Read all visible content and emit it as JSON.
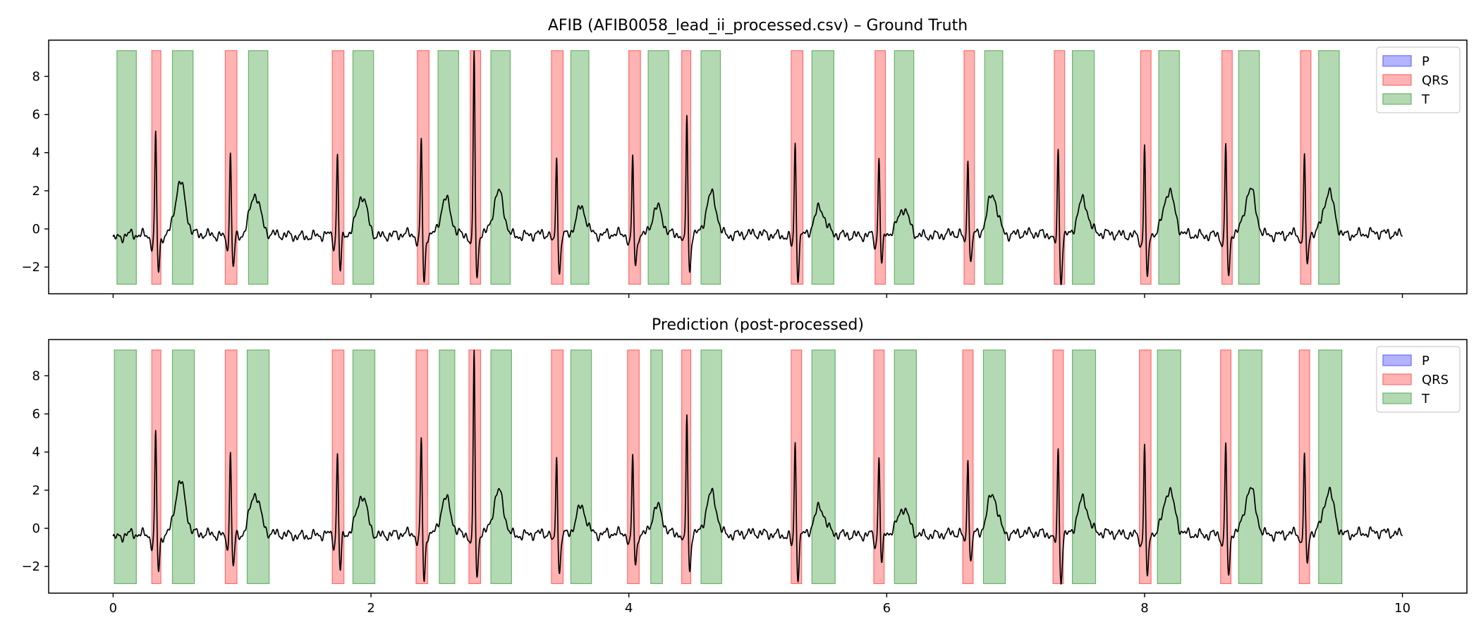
{
  "chart_data": [
    {
      "type": "line",
      "title": "AFIB (AFIB0058_lead_ii_processed.csv) – Ground Truth",
      "xlabel": "",
      "ylabel": "",
      "xlim": [
        -0.5,
        10.5
      ],
      "ylim": [
        -3.4,
        9.9
      ],
      "xticks": [
        0,
        2,
        4,
        6,
        8,
        10
      ],
      "xtick_labels": [
        "",
        "",
        "",
        "",
        "",
        ""
      ],
      "yticks": [
        -2,
        0,
        2,
        4,
        6,
        8
      ],
      "ytick_labels": [
        "−2",
        "0",
        "2",
        "4",
        "6",
        "8"
      ],
      "grid": false,
      "legend_position": "top-right",
      "legend": [
        {
          "label": "P",
          "color": "#b3b3ff"
        },
        {
          "label": "QRS",
          "color": "#ffb3b3"
        },
        {
          "label": "T",
          "color": "#b3d9b3"
        }
      ],
      "band_range": [
        -2.9,
        9.35
      ],
      "segments": {
        "P": [],
        "QRS": [
          [
            0.3,
            0.37
          ],
          [
            0.87,
            0.96
          ],
          [
            1.7,
            1.79
          ],
          [
            2.36,
            2.45
          ],
          [
            2.77,
            2.85
          ],
          [
            3.4,
            3.49
          ],
          [
            4.0,
            4.09
          ],
          [
            4.41,
            4.48
          ],
          [
            5.26,
            5.35
          ],
          [
            5.91,
            5.99
          ],
          [
            6.6,
            6.68
          ],
          [
            7.3,
            7.38
          ],
          [
            7.97,
            8.05
          ],
          [
            8.6,
            8.68
          ],
          [
            9.21,
            9.29
          ]
        ],
        "T": [
          [
            0.03,
            0.18
          ],
          [
            0.46,
            0.62
          ],
          [
            1.05,
            1.2
          ],
          [
            1.86,
            2.02
          ],
          [
            2.52,
            2.68
          ],
          [
            2.93,
            3.08
          ],
          [
            3.55,
            3.69
          ],
          [
            4.15,
            4.31
          ],
          [
            4.56,
            4.71
          ],
          [
            5.42,
            5.59
          ],
          [
            6.06,
            6.21
          ],
          [
            6.76,
            6.9
          ],
          [
            7.44,
            7.61
          ],
          [
            8.11,
            8.27
          ],
          [
            8.73,
            8.89
          ],
          [
            9.35,
            9.51
          ]
        ]
      },
      "beats": [
        {
          "t": 0.33,
          "r": 5.2,
          "s": -2.2,
          "tw": 2.45
        },
        {
          "t": 0.91,
          "r": 4.15,
          "s": -2.0,
          "tw": 1.8
        },
        {
          "t": 1.74,
          "r": 4.0,
          "s": -2.3,
          "tw": 1.75
        },
        {
          "t": 2.39,
          "r": 4.85,
          "s": -2.8,
          "tw": 1.6
        },
        {
          "t": 2.8,
          "r": 9.4,
          "s": -2.8,
          "tw": 1.95
        },
        {
          "t": 3.44,
          "r": 3.9,
          "s": -2.4,
          "tw": 1.15
        },
        {
          "t": 4.03,
          "r": 3.85,
          "s": -2.0,
          "tw": 1.15
        },
        {
          "t": 4.45,
          "r": 5.95,
          "s": -2.3,
          "tw": 1.85
        },
        {
          "t": 5.29,
          "r": 4.7,
          "s": -2.5,
          "tw": 1.0
        },
        {
          "t": 5.94,
          "r": 3.85,
          "s": -2.0,
          "tw": 1.0
        },
        {
          "t": 6.63,
          "r": 3.85,
          "s": -1.9,
          "tw": 1.8
        },
        {
          "t": 7.33,
          "r": 4.25,
          "s": -2.8,
          "tw": 1.45
        },
        {
          "t": 8.0,
          "r": 4.55,
          "s": -2.8,
          "tw": 1.9
        },
        {
          "t": 8.63,
          "r": 4.5,
          "s": -2.8,
          "tw": 2.0
        },
        {
          "t": 9.24,
          "r": 3.75,
          "s": -2.1,
          "tw": 1.9
        }
      ]
    },
    {
      "type": "line",
      "title": "Prediction (post-processed)",
      "xlabel": "",
      "ylabel": "",
      "xlim": [
        -0.5,
        10.5
      ],
      "ylim": [
        -3.4,
        9.9
      ],
      "xticks": [
        0,
        2,
        4,
        6,
        8,
        10
      ],
      "xtick_labels": [
        "0",
        "2",
        "4",
        "6",
        "8",
        "10"
      ],
      "yticks": [
        -2,
        0,
        2,
        4,
        6,
        8
      ],
      "ytick_labels": [
        "−2",
        "0",
        "2",
        "4",
        "6",
        "8"
      ],
      "grid": false,
      "legend_position": "top-right",
      "legend": [
        {
          "label": "P",
          "color": "#b3b3ff"
        },
        {
          "label": "QRS",
          "color": "#ffb3b3"
        },
        {
          "label": "T",
          "color": "#b3d9b3"
        }
      ],
      "band_range": [
        -2.9,
        9.35
      ],
      "segments": {
        "P": [],
        "QRS": [
          [
            0.3,
            0.37
          ],
          [
            0.87,
            0.96
          ],
          [
            1.7,
            1.79
          ],
          [
            2.35,
            2.44
          ],
          [
            2.76,
            2.85
          ],
          [
            3.4,
            3.49
          ],
          [
            3.99,
            4.08
          ],
          [
            4.41,
            4.48
          ],
          [
            5.26,
            5.34
          ],
          [
            5.9,
            5.98
          ],
          [
            6.59,
            6.67
          ],
          [
            7.29,
            7.37
          ],
          [
            7.96,
            8.05
          ],
          [
            8.59,
            8.67
          ],
          [
            9.2,
            9.28
          ]
        ],
        "T": [
          [
            0.01,
            0.18
          ],
          [
            0.46,
            0.63
          ],
          [
            1.04,
            1.21
          ],
          [
            1.86,
            2.03
          ],
          [
            2.53,
            2.65
          ],
          [
            2.93,
            3.09
          ],
          [
            3.55,
            3.71
          ],
          [
            4.17,
            4.26
          ],
          [
            4.56,
            4.72
          ],
          [
            5.42,
            5.6
          ],
          [
            6.06,
            6.23
          ],
          [
            6.75,
            6.92
          ],
          [
            7.44,
            7.62
          ],
          [
            8.1,
            8.28
          ],
          [
            8.73,
            8.91
          ],
          [
            9.35,
            9.53
          ]
        ]
      },
      "beats": [
        {
          "t": 0.33,
          "r": 5.2,
          "s": -2.2,
          "tw": 2.45
        },
        {
          "t": 0.91,
          "r": 4.15,
          "s": -2.0,
          "tw": 1.8
        },
        {
          "t": 1.74,
          "r": 4.0,
          "s": -2.3,
          "tw": 1.75
        },
        {
          "t": 2.39,
          "r": 4.85,
          "s": -2.8,
          "tw": 1.6
        },
        {
          "t": 2.8,
          "r": 9.4,
          "s": -2.8,
          "tw": 1.95
        },
        {
          "t": 3.44,
          "r": 3.9,
          "s": -2.4,
          "tw": 1.15
        },
        {
          "t": 4.03,
          "r": 3.85,
          "s": -2.0,
          "tw": 1.15
        },
        {
          "t": 4.45,
          "r": 5.95,
          "s": -2.3,
          "tw": 1.85
        },
        {
          "t": 5.29,
          "r": 4.7,
          "s": -2.5,
          "tw": 1.0
        },
        {
          "t": 5.94,
          "r": 3.85,
          "s": -2.0,
          "tw": 1.0
        },
        {
          "t": 6.63,
          "r": 3.85,
          "s": -1.9,
          "tw": 1.8
        },
        {
          "t": 7.33,
          "r": 4.25,
          "s": -2.8,
          "tw": 1.45
        },
        {
          "t": 8.0,
          "r": 4.55,
          "s": -2.8,
          "tw": 1.9
        },
        {
          "t": 8.63,
          "r": 4.5,
          "s": -2.8,
          "tw": 2.0
        },
        {
          "t": 9.24,
          "r": 3.75,
          "s": -2.1,
          "tw": 1.9
        }
      ]
    }
  ]
}
